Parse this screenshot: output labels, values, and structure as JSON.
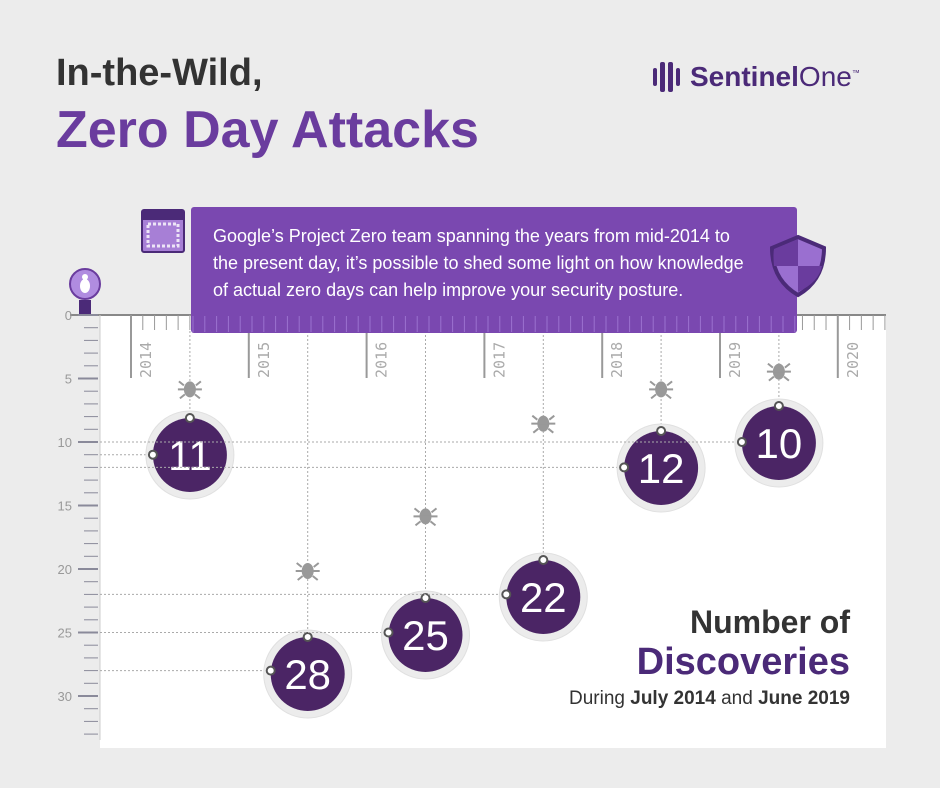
{
  "title_line1": "In-the-Wild,",
  "title_line2": "Zero Day Attacks",
  "logo": {
    "word1": "Sentinel",
    "word2": "One",
    "tm": "™"
  },
  "banner_text": "Google’s Project Zero team spanning the years from mid-2014 to the present day, it’s possible to shed some light on how knowledge of actual zero days can help improve your security posture.",
  "caption": {
    "line1": "Number of",
    "line2": "Discoveries",
    "during": "During",
    "start": "July 2014",
    "and": "and",
    "end": "June 2019"
  },
  "colors": {
    "purple": "#7a48b0",
    "dark_purple": "#4b2a78",
    "text": "#333333"
  },
  "chart_data": {
    "type": "scatter",
    "title": "Number of Discoveries",
    "x_ticks": [
      "2014",
      "2015",
      "2016",
      "2017",
      "2018",
      "2019",
      "2020"
    ],
    "y_ticks": [
      "0",
      "5",
      "10",
      "15",
      "20",
      "25",
      "30"
    ],
    "ylim": [
      0,
      33
    ],
    "y_inverted": true,
    "x": [
      2014.5,
      2015.5,
      2016.5,
      2017.5,
      2018.5,
      2019.5
    ],
    "values": [
      11,
      28,
      25,
      22,
      12,
      10
    ],
    "labels": [
      "11",
      "28",
      "25",
      "22",
      "12",
      "10"
    ]
  }
}
